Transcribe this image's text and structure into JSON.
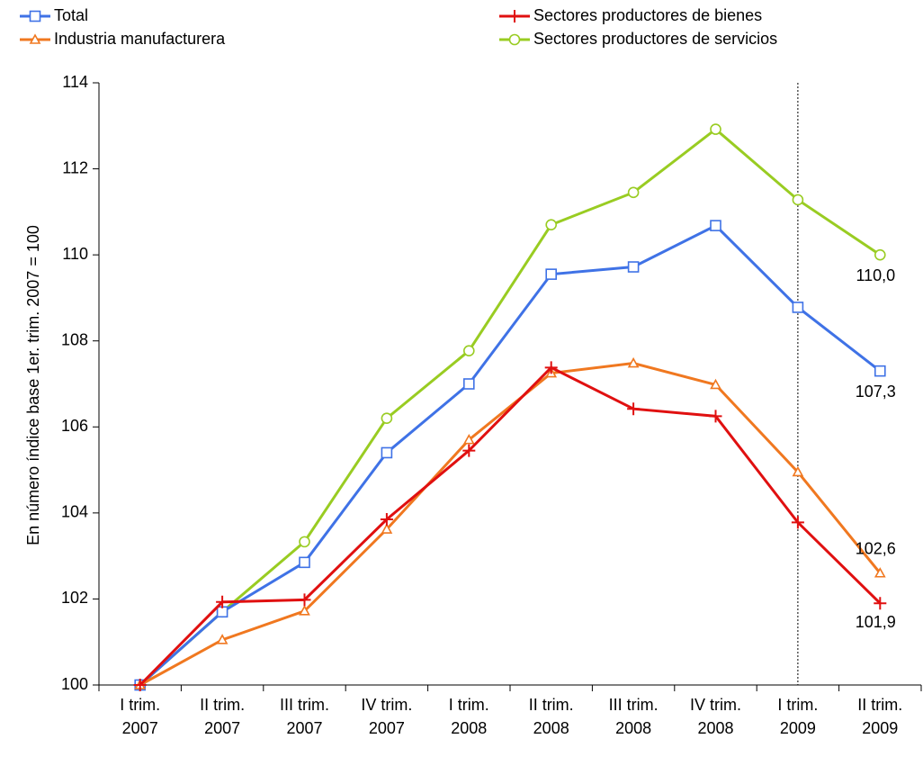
{
  "chart_data": {
    "type": "line",
    "y_label": "En número índice base 1er. trim. 2007 = 100",
    "categories": [
      "I trim. 2007",
      "II trim. 2007",
      "III trim. 2007",
      "IV trim. 2007",
      "I trim. 2008",
      "II trim. 2008",
      "III trim. 2008",
      "IV trim. 2008",
      "I trim. 2009",
      "II trim. 2009"
    ],
    "series": [
      {
        "name": "Total",
        "color": "#3f72e6",
        "marker": "square",
        "values": [
          100,
          101.7,
          102.85,
          105.4,
          107.0,
          109.55,
          109.72,
          110.68,
          108.78,
          107.3
        ],
        "value_labels": [
          null,
          null,
          null,
          null,
          null,
          null,
          null,
          null,
          null,
          "107,3"
        ]
      },
      {
        "name": "Sectores productores de bienes",
        "color": "#e01010",
        "marker": "cross",
        "values": [
          100,
          101.93,
          101.98,
          103.85,
          105.45,
          107.38,
          106.42,
          106.25,
          103.78,
          101.9
        ],
        "value_labels": [
          null,
          null,
          null,
          null,
          null,
          null,
          null,
          null,
          null,
          "101,9"
        ]
      },
      {
        "name": "Industria manufacturera",
        "color": "#f07820",
        "marker": "triangle",
        "values": [
          100,
          101.05,
          101.72,
          103.62,
          105.7,
          107.25,
          107.48,
          106.98,
          104.95,
          102.6
        ],
        "value_labels": [
          null,
          null,
          null,
          null,
          null,
          null,
          null,
          null,
          null,
          "102,6"
        ]
      },
      {
        "name": "Sectores productores de servicios",
        "color": "#99cc22",
        "marker": "circle",
        "values": [
          100,
          101.7,
          103.33,
          106.2,
          107.77,
          110.7,
          111.45,
          112.92,
          111.28,
          110.0
        ],
        "value_labels": [
          null,
          null,
          null,
          null,
          null,
          null,
          null,
          null,
          null,
          "110,0"
        ]
      }
    ],
    "ylim": [
      100,
      114
    ],
    "yticks": [
      100,
      102,
      104,
      106,
      108,
      110,
      112,
      114
    ],
    "grid": false
  }
}
